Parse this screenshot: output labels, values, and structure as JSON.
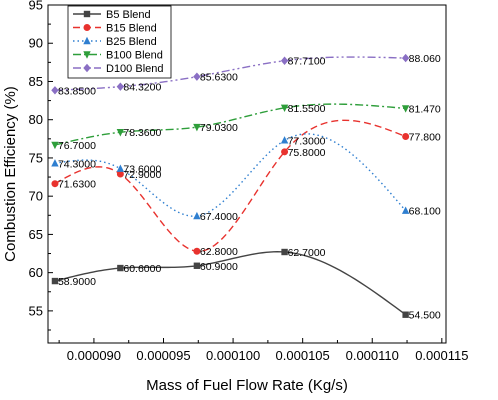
{
  "chart_data": {
    "type": "line",
    "xlabel": "Mass of Fuel Flow Rate (Kg/s)",
    "ylabel": "Combustion Efficiency (%)",
    "xlim": [
      8.67e-05,
      0.0001153
    ],
    "ylim": [
      50.8,
      95
    ],
    "xticks": [
      9e-05,
      9.5e-05,
      0.0001,
      0.000105,
      0.00011,
      0.000115
    ],
    "xtick_labels": [
      "0.000090",
      "0.000095",
      "0.000100",
      "0.000105",
      "0.000110",
      "0.000115"
    ],
    "yticks": [
      55,
      60,
      65,
      70,
      75,
      80,
      85,
      90,
      95
    ],
    "ytick_labels": [
      "55",
      "60",
      "65",
      "70",
      "75",
      "80",
      "85",
      "90",
      "95"
    ],
    "x": [
      8.72e-05,
      9.19e-05,
      9.74e-05,
      0.0001037,
      0.0001124
    ],
    "grid": false,
    "legend_position": "top-left",
    "series": [
      {
        "name": "B5 Blend",
        "color": "#444444",
        "dash": "solid",
        "marker": "square",
        "values": [
          58.9,
          60.6,
          60.9,
          62.7,
          54.5
        ],
        "labels": [
          "58.9000",
          "60.6000",
          "60.9000",
          "62.7000",
          "54.500"
        ]
      },
      {
        "name": "B15 Blend",
        "color": "#e8322e",
        "dash": "dashed",
        "marker": "circle",
        "values": [
          71.63,
          72.9,
          62.8,
          75.8,
          77.8
        ],
        "labels": [
          "71.6300",
          "72.9000",
          "62.8000",
          "75.8000",
          "77.800"
        ]
      },
      {
        "name": "B25 Blend",
        "color": "#2f7fd0",
        "dash": "dotted",
        "marker": "triangle-up",
        "values": [
          74.3,
          73.6,
          67.4,
          77.3,
          68.1
        ],
        "labels": [
          "74.3000",
          "73.6000",
          "67.4000",
          "77.3000",
          "68.100"
        ]
      },
      {
        "name": "B100 Blend",
        "color": "#2e9e3a",
        "dash": "dashdot",
        "marker": "triangle-down",
        "values": [
          76.7,
          78.36,
          79.03,
          81.55,
          81.47
        ],
        "labels": [
          "76.7000",
          "78.3600",
          "79.0300",
          "81.5500",
          "81.470"
        ]
      },
      {
        "name": "D100 Blend",
        "color": "#8a6fc4",
        "dash": "dashdotdot",
        "marker": "diamond",
        "values": [
          83.85,
          84.32,
          85.63,
          87.71,
          88.06
        ],
        "labels": [
          "83.8500",
          "84.3200",
          "85.6300",
          "87.7100",
          "88.060"
        ]
      }
    ]
  }
}
